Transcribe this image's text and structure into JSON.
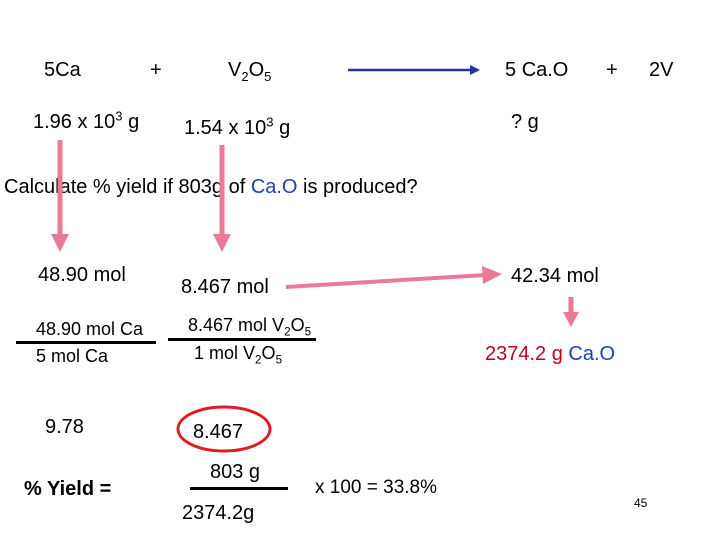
{
  "colors": {
    "arrow_pink": "#ea7a97",
    "arrow_navy": "#2233a0",
    "ring_red": "#e11b22",
    "accent_blue": "#1f3fb2",
    "accent_red": "#c0001d"
  },
  "equation": {
    "reactant1": "5Ca",
    "plus1": "+",
    "reactant2_base": "V",
    "reactant2_sub1": "2",
    "reactant2_mid": "O",
    "reactant2_sub2": "5",
    "product1_coef": "5 ",
    "product1_formula": "Ca.O",
    "plus2": "+",
    "product2": "2V"
  },
  "given": {
    "ca_mass_base": "1.96 x 10",
    "ca_mass_exp": "3",
    "ca_mass_unit": " g",
    "v2o5_mass_base": "1.54 x 10",
    "v2o5_mass_exp": "3",
    "v2o5_mass_unit": " g",
    "cao_unknown": "? g"
  },
  "question": {
    "part1": "Calculate % yield  if  803g of ",
    "highlight": "Ca.O",
    "part2": " is produced?"
  },
  "moles": {
    "ca": "48.90 mol",
    "v2o5": "8.467 mol",
    "cao": "42.34 mol"
  },
  "ratio_ca": {
    "numerator": "48.90 mol Ca",
    "denominator": "5   mol Ca",
    "result": "9.78"
  },
  "ratio_v2o5": {
    "num_prefix": "8.467 mol V",
    "num_sub1": "2",
    "num_mid": "O",
    "num_sub2": "5",
    "den_prefix": "1 mol V",
    "den_sub1": "2",
    "den_mid": "O",
    "den_sub2": "5",
    "result": "8.467"
  },
  "cao_mass": {
    "value": "2374.2 g ",
    "formula": "Ca.O"
  },
  "yield_calc": {
    "label": "% Yield =",
    "numerator": "803 g",
    "denominator": "2374.2g",
    "multiplier": "x 100 =  33.8%"
  },
  "page_number": "45"
}
